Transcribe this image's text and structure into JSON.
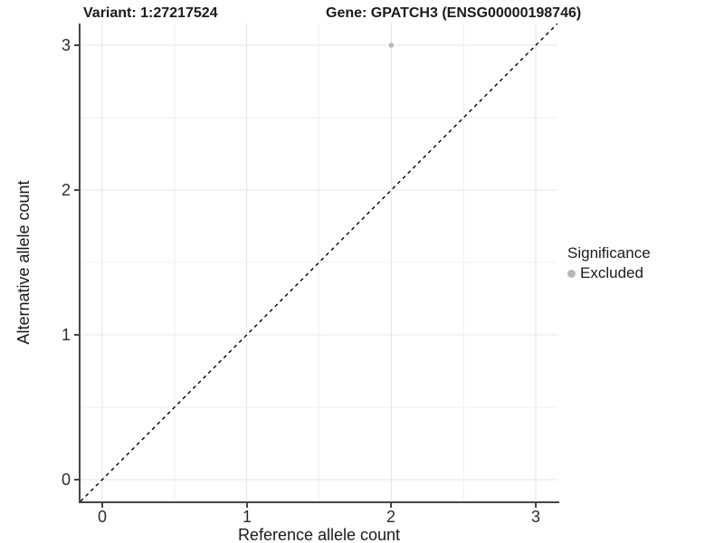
{
  "chart_data": {
    "type": "scatter",
    "title_left": "Variant: 1:27217524",
    "title_right": "Gene: GPATCH3 (ENSG00000198746)",
    "xlabel": "Reference allele count",
    "ylabel": "Alternative allele count",
    "xlim": [
      -0.15,
      3.15
    ],
    "ylim": [
      -0.15,
      3.15
    ],
    "x_ticks": [
      0,
      1,
      2,
      3
    ],
    "y_ticks": [
      0,
      1,
      2,
      3
    ],
    "x_tick_labels": [
      "0",
      "1",
      "2",
      "3"
    ],
    "y_tick_labels": [
      "0",
      "1",
      "2",
      "3"
    ],
    "minor_gridlines": [
      0.5,
      1.5,
      2.5
    ],
    "grid": {
      "major_color": "#e4e4e4",
      "minor_color": "#efefef"
    },
    "diagonal_reference_line": {
      "from": [
        -0.15,
        -0.15
      ],
      "to": [
        3.15,
        3.15
      ],
      "style": "dashed",
      "color": "#000000"
    },
    "series": [
      {
        "name": "Excluded",
        "color": "#b8b8b8",
        "points": [
          [
            2,
            3
          ]
        ],
        "point_radius": 2.8
      }
    ],
    "legend": {
      "title": "Significance",
      "position": "right",
      "entries": [
        {
          "label": "Excluded",
          "color": "#b8b8b8"
        }
      ]
    },
    "axis": {
      "line_color": "#454545"
    },
    "background_color": "#ffffff"
  }
}
